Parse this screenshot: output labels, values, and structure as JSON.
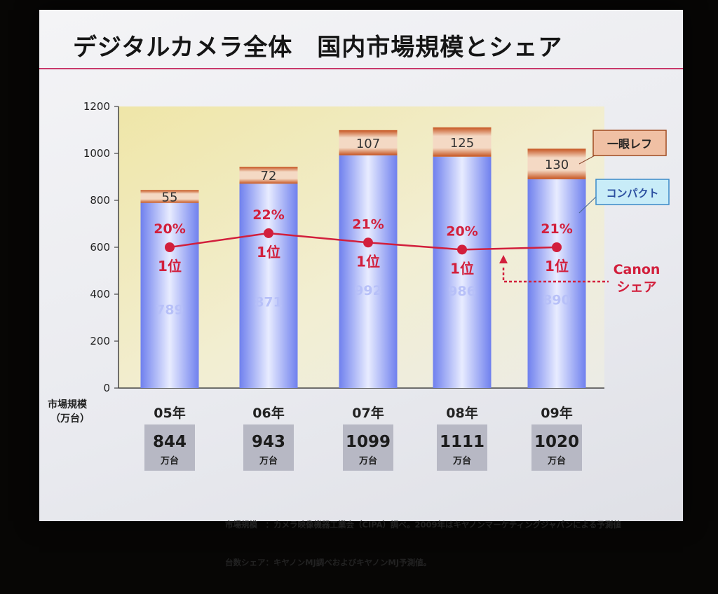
{
  "title": "デジタルカメラ全体　国内市場規模とシェア",
  "chart_data": {
    "type": "bar",
    "stacked": true,
    "categories": [
      "05年",
      "06年",
      "07年",
      "08年",
      "09年"
    ],
    "series": [
      {
        "name": "コンパクト",
        "values": [
          789,
          871,
          992,
          986,
          890
        ],
        "color": "#7f8ff2"
      },
      {
        "name": "一眼レフ",
        "values": [
          55,
          72,
          107,
          125,
          130
        ],
        "color": "#c4501e"
      }
    ],
    "line": {
      "name": "Canon シェア",
      "share": [
        "20%",
        "22%",
        "21%",
        "20%",
        "21%"
      ],
      "rank": [
        "1位",
        "1位",
        "1位",
        "1位",
        "1位"
      ],
      "plot_y": [
        600,
        660,
        620,
        590,
        600
      ],
      "color": "#d21f3c"
    },
    "totals": [
      "844",
      "943",
      "1099",
      "1111",
      "1020"
    ],
    "total_unit": "万台",
    "ylim": [
      0,
      1200
    ],
    "yticks": [
      "0",
      "200",
      "400",
      "600",
      "800",
      "1000",
      "1200"
    ],
    "ylabel": "市場規模\n（万台）",
    "legend": {
      "slr": "一眼レフ",
      "compact": "コンパクト",
      "canon_line1": "Canon",
      "canon_line2": "シェア"
    }
  },
  "footnotes": [
    "市場規模　：カメラ映像機器工業会（CIPA）調べ。2009年はキヤノンマーケティングジャパンによる予測値",
    "台数シェア：キヤノンMJ調べおよびキヤノンMJ予測値。"
  ]
}
